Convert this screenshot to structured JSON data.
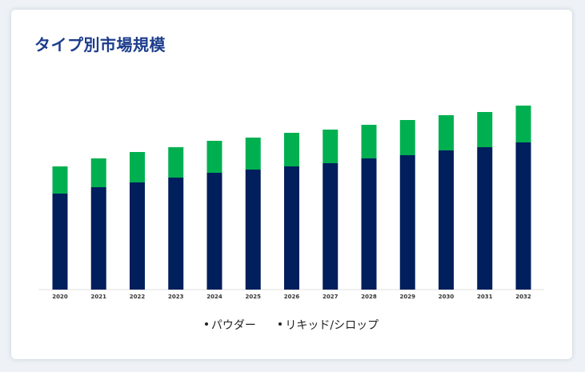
{
  "card": {
    "title": "タイプ別市場規模"
  },
  "chart_data": {
    "type": "bar",
    "stacked": true,
    "categories": [
      "2020",
      "2021",
      "2022",
      "2023",
      "2024",
      "2025",
      "2026",
      "2027",
      "2028",
      "2029",
      "2030",
      "2031",
      "2032"
    ],
    "series": [
      {
        "name": "パウダー",
        "color": "#001f5c",
        "values": [
          60,
          64,
          67,
          70,
          73,
          75,
          77,
          79,
          82,
          84,
          87,
          89,
          92
        ]
      },
      {
        "name": "リキッド/シロップ",
        "color": "#00b050",
        "values": [
          17,
          18,
          19,
          19,
          20,
          20,
          21,
          21,
          21,
          22,
          22,
          22,
          23
        ]
      }
    ],
    "ylim": [
      0,
      125
    ],
    "grid": false,
    "legend": "bottom-center"
  }
}
